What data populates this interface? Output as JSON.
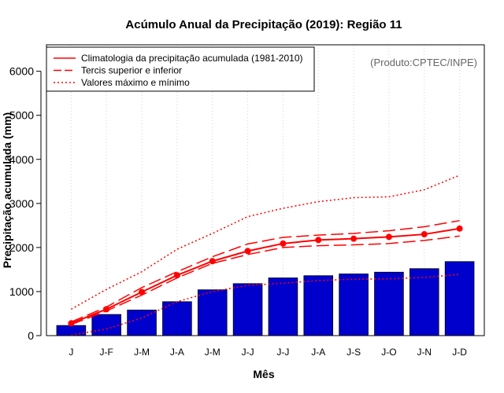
{
  "chart_data": {
    "type": "bar",
    "title": "Acúmulo Anual da Precipitação (2019): Região 11",
    "xlabel": "Mês",
    "ylabel": "Precipitação acumulada (mm)",
    "ylim": [
      0,
      6600
    ],
    "yticks": [
      0,
      1000,
      2000,
      3000,
      4000,
      5000,
      6000
    ],
    "categories": [
      "J",
      "J-F",
      "J-M",
      "J-A",
      "J-M",
      "J-J",
      "J-J",
      "J-A",
      "J-S",
      "J-O",
      "J-N",
      "J-D"
    ],
    "bars": {
      "name": "Precipitação acumulada 2019",
      "color": "#0000cd",
      "values": [
        230,
        480,
        580,
        770,
        1040,
        1180,
        1310,
        1360,
        1400,
        1440,
        1520,
        1680
      ]
    },
    "series": [
      {
        "name": "Climatologia da precipitação acumulada (1981-2010)",
        "style": "solid",
        "color": "#ff0000",
        "markers": true,
        "values": [
          280,
          600,
          990,
          1370,
          1690,
          1920,
          2090,
          2170,
          2200,
          2240,
          2300,
          2430
        ]
      },
      {
        "name": "Tercil superior",
        "style": "dashed",
        "color": "#ff0000",
        "values": [
          310,
          650,
          1090,
          1450,
          1790,
          2080,
          2230,
          2280,
          2320,
          2380,
          2470,
          2610
        ]
      },
      {
        "name": "Tercil inferior",
        "style": "dashed",
        "color": "#ff0000",
        "values": [
          250,
          560,
          920,
          1310,
          1640,
          1840,
          2000,
          2040,
          2060,
          2090,
          2160,
          2260
        ]
      },
      {
        "name": "Valor máximo",
        "style": "dotted",
        "color": "#ff0000",
        "values": [
          600,
          1050,
          1450,
          1960,
          2320,
          2700,
          2890,
          3040,
          3130,
          3150,
          3310,
          3640
        ]
      },
      {
        "name": "Valor mínimo",
        "style": "dotted",
        "color": "#ff0000",
        "values": [
          10,
          150,
          400,
          770,
          1000,
          1140,
          1190,
          1250,
          1280,
          1290,
          1320,
          1390
        ]
      }
    ],
    "legend": {
      "position": "top-left",
      "entries": [
        {
          "label": "Climatologia da precipitação acumulada (1981-2010)",
          "style": "solid"
        },
        {
          "label": "Tercis superior e inferior",
          "style": "dashed"
        },
        {
          "label": "Valores máximo e mínimo",
          "style": "dotted"
        }
      ]
    },
    "annotation": "(Produto:CPTEC/INPE)",
    "grid": "vertical-dotted"
  }
}
